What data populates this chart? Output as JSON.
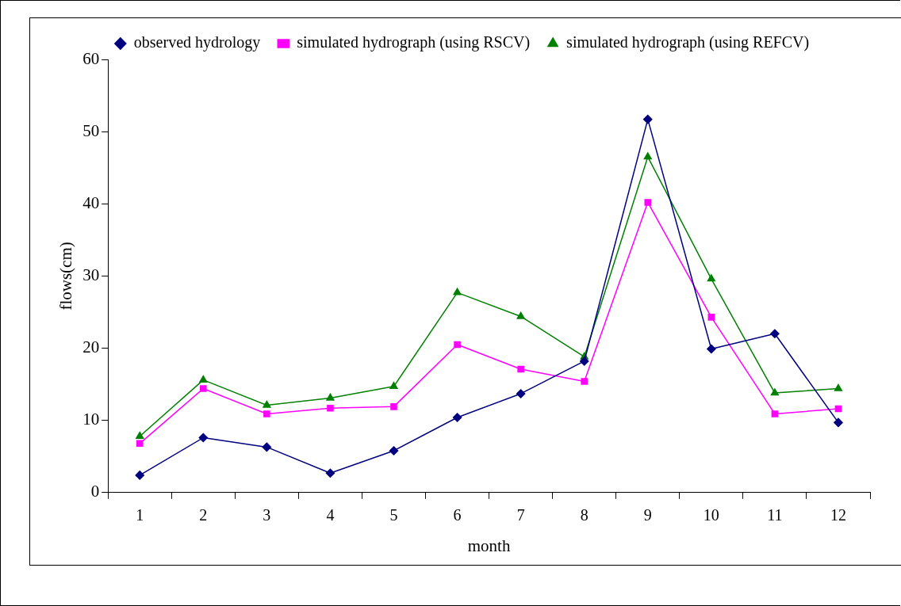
{
  "chart_data": {
    "type": "line",
    "xlabel": "month",
    "ylabel": "flows(cm)",
    "categories": [
      "1",
      "2",
      "3",
      "4",
      "5",
      "6",
      "7",
      "8",
      "9",
      "10",
      "11",
      "12"
    ],
    "series": [
      {
        "name": "observed hydrology",
        "color": "#000080",
        "marker": "diamond",
        "values": [
          2.4,
          7.6,
          6.3,
          2.7,
          5.8,
          10.4,
          13.7,
          18.2,
          51.7,
          19.9,
          22.0,
          9.7
        ]
      },
      {
        "name": "simulated hydrograph (using RSCV)",
        "color": "#ff00ff",
        "marker": "square",
        "values": [
          6.8,
          14.4,
          10.9,
          11.7,
          11.9,
          20.5,
          17.1,
          15.4,
          40.2,
          24.3,
          10.9,
          11.6
        ]
      },
      {
        "name": "simulated hydrograph (using REFCV)",
        "color": "#008000",
        "marker": "triangle",
        "values": [
          7.8,
          15.6,
          12.1,
          13.1,
          14.7,
          27.7,
          24.4,
          18.8,
          46.5,
          29.6,
          13.8,
          14.4
        ]
      }
    ],
    "ylim": [
      0,
      60
    ],
    "yticks": [
      0,
      10,
      20,
      30,
      40,
      50,
      60
    ],
    "grid": false,
    "legend": "top",
    "line_style": "solid"
  }
}
